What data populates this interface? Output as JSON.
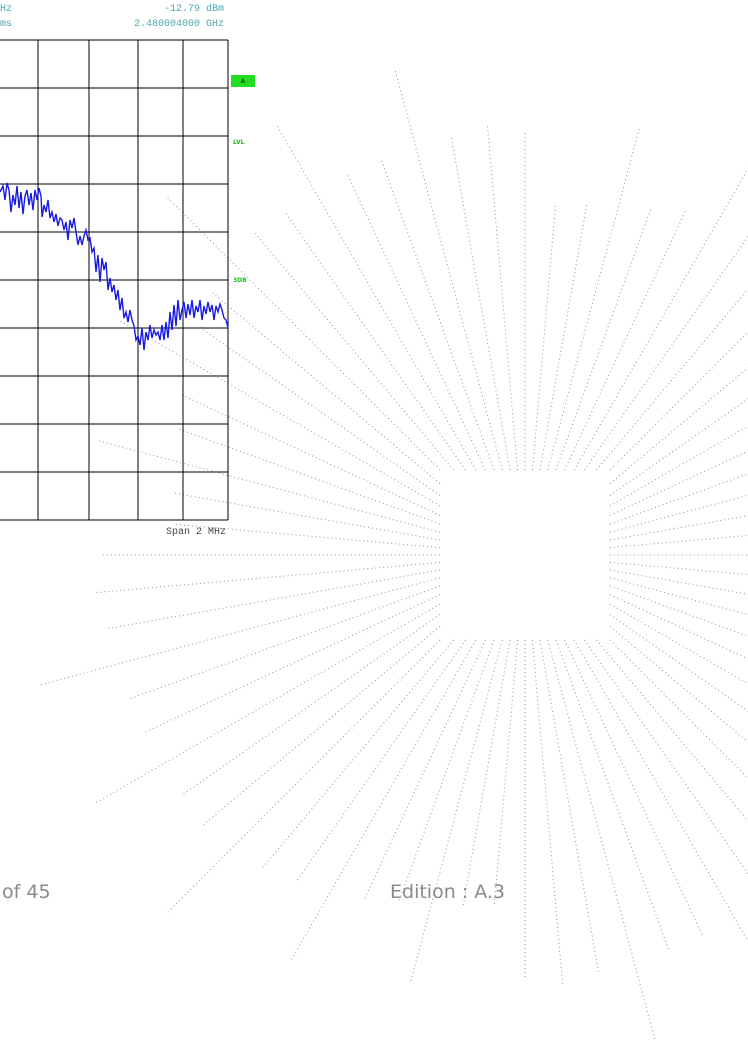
{
  "screenshot": {
    "header_left": [
      "Hz",
      "ms"
    ],
    "header_right": [
      "-12.79 dBm",
      "2.480004000 GHz"
    ],
    "side_labels": [
      "A",
      "LVL",
      "3DB"
    ],
    "span": "Span 2 MHz"
  },
  "footer": {
    "page": "of 45",
    "edition": "Edition : A.3"
  }
}
